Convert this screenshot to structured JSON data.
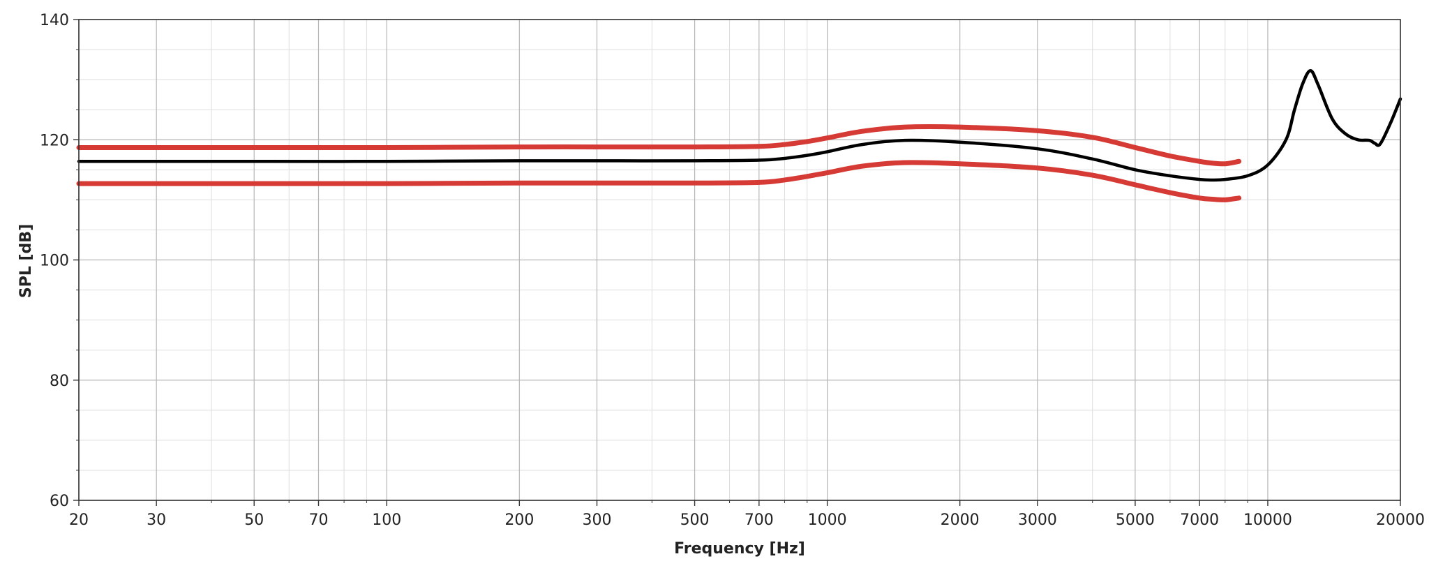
{
  "chart_data": {
    "type": "line",
    "xlabel": "Frequency [Hz]",
    "ylabel": "SPL [dB]",
    "x_scale": "log",
    "xlim": [
      20,
      20000
    ],
    "ylim": [
      60,
      140
    ],
    "grid": true,
    "x_ticks": [
      20,
      30,
      50,
      70,
      100,
      200,
      300,
      500,
      700,
      1000,
      2000,
      3000,
      5000,
      7000,
      10000,
      20000
    ],
    "x_tick_labels": [
      "20",
      "30",
      "50",
      "70",
      "100",
      "200",
      "300",
      "500",
      "700",
      "1000",
      "2000",
      "3000",
      "5000",
      "7000",
      "10000",
      "20000"
    ],
    "y_ticks": [
      60,
      80,
      100,
      120,
      140
    ],
    "y_tick_labels": [
      "60",
      "80",
      "100",
      "120",
      "140"
    ],
    "series": [
      {
        "color": "#d63a35",
        "x": [
          20,
          30,
          50,
          100,
          200,
          300,
          500,
          700,
          800,
          900,
          1000,
          1200,
          1500,
          2000,
          3000,
          4000,
          5000,
          6000,
          7000,
          7500,
          8000,
          8600
        ],
        "y": [
          118.7,
          118.7,
          118.7,
          118.7,
          118.8,
          118.8,
          118.8,
          118.9,
          119.2,
          119.7,
          120.3,
          121.4,
          122.1,
          122.1,
          121.5,
          120.4,
          118.7,
          117.3,
          116.4,
          116.1,
          116.0,
          116.4
        ]
      },
      {
        "color": "#000000",
        "x": [
          20,
          30,
          50,
          100,
          200,
          300,
          500,
          700,
          800,
          900,
          1000,
          1200,
          1500,
          2000,
          3000,
          4000,
          5000,
          6000,
          7000,
          7500,
          8000,
          9000,
          10000,
          11000,
          11500,
          12000,
          12500,
          13000,
          14000,
          15000,
          16000,
          17000,
          17500,
          18000,
          19000,
          20000
        ],
        "y": [
          116.4,
          116.4,
          116.4,
          116.4,
          116.5,
          116.5,
          116.5,
          116.6,
          116.9,
          117.4,
          118.0,
          119.2,
          119.9,
          119.6,
          118.5,
          116.8,
          115.0,
          114.0,
          113.4,
          113.3,
          113.4,
          114.0,
          115.8,
          120.0,
          125.0,
          129.3,
          131.5,
          129.2,
          123.5,
          121.0,
          120.0,
          119.9,
          119.4,
          119.3,
          122.8,
          126.8
        ]
      },
      {
        "color": "#d63a35",
        "x": [
          20,
          30,
          50,
          100,
          200,
          300,
          500,
          700,
          800,
          900,
          1000,
          1200,
          1500,
          2000,
          3000,
          4000,
          5000,
          6000,
          7000,
          7500,
          8000,
          8600
        ],
        "y": [
          112.7,
          112.7,
          112.7,
          112.7,
          112.8,
          112.8,
          112.8,
          112.9,
          113.3,
          113.9,
          114.5,
          115.6,
          116.2,
          116.0,
          115.3,
          114.1,
          112.5,
          111.2,
          110.3,
          110.1,
          110.0,
          110.3
        ]
      }
    ]
  }
}
